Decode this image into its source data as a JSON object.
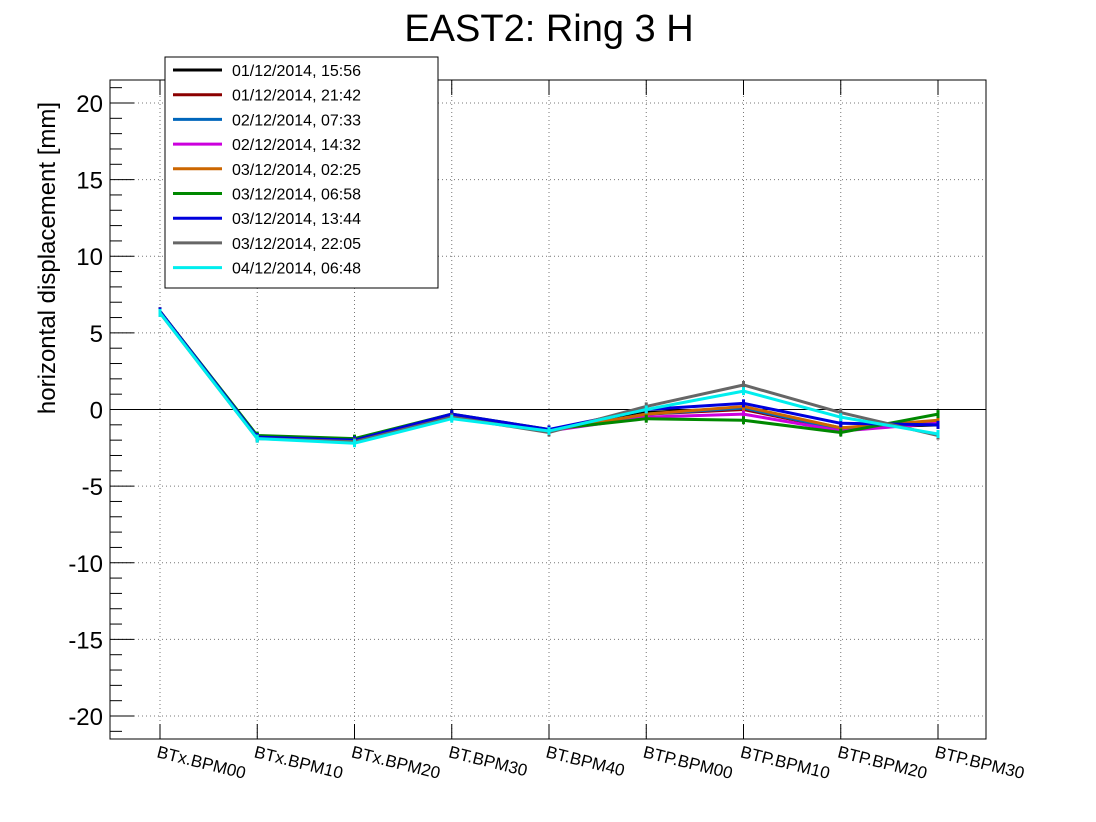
{
  "chart_data": {
    "type": "line",
    "title": "EAST2: Ring 3 H",
    "xlabel": "",
    "ylabel": "horizontal displacement [mm]",
    "ylim": [
      -21.5,
      21.5
    ],
    "yticks": [
      -20,
      -15,
      -10,
      -5,
      0,
      5,
      10,
      15,
      20
    ],
    "grid": true,
    "legend_position": "top-left",
    "categories": [
      "BTx.BPM00",
      "BTx.BPM10",
      "BTx.BPM20",
      "BT.BPM30",
      "BT.BPM40",
      "BTP.BPM00",
      "BTP.BPM10",
      "BTP.BPM20",
      "BTP.BPM30"
    ],
    "series": [
      {
        "name": "01/12/2014, 15:56",
        "color": "#000000",
        "values": [
          6.4,
          -1.8,
          -2.0,
          -0.4,
          -1.4,
          -0.2,
          0.1,
          -1.2,
          -1.0
        ]
      },
      {
        "name": "01/12/2014, 21:42",
        "color": "#8b0000",
        "values": [
          6.4,
          -1.8,
          -2.0,
          -0.4,
          -1.4,
          -0.3,
          0.0,
          -1.3,
          -0.8
        ]
      },
      {
        "name": "02/12/2014, 07:33",
        "color": "#0066bb",
        "values": [
          6.4,
          -1.8,
          -2.0,
          -0.4,
          -1.4,
          -0.3,
          0.1,
          -1.3,
          -0.9
        ]
      },
      {
        "name": "02/12/2014, 14:32",
        "color": "#cc00dd",
        "values": [
          6.4,
          -1.8,
          -2.0,
          -0.4,
          -1.4,
          -0.5,
          -0.3,
          -1.4,
          -0.9
        ]
      },
      {
        "name": "03/12/2014, 02:25",
        "color": "#cc6600",
        "values": [
          6.4,
          -1.8,
          -2.0,
          -0.4,
          -1.4,
          -0.3,
          0.2,
          -1.2,
          -0.7
        ]
      },
      {
        "name": "03/12/2014, 06:58",
        "color": "#008800",
        "values": [
          6.4,
          -1.7,
          -1.9,
          -0.3,
          -1.3,
          -0.6,
          -0.7,
          -1.5,
          -0.3
        ]
      },
      {
        "name": "03/12/2014, 13:44",
        "color": "#0000dd",
        "values": [
          6.4,
          -1.8,
          -2.0,
          -0.3,
          -1.3,
          0.0,
          0.4,
          -0.9,
          -1.0
        ]
      },
      {
        "name": "03/12/2014, 22:05",
        "color": "#666666",
        "values": [
          6.3,
          -1.9,
          -2.1,
          -0.5,
          -1.5,
          0.2,
          1.6,
          -0.2,
          -1.7
        ]
      },
      {
        "name": "04/12/2014, 06:48",
        "color": "#00eeee",
        "values": [
          6.3,
          -1.9,
          -2.2,
          -0.6,
          -1.4,
          0.0,
          1.2,
          -0.5,
          -1.6
        ]
      }
    ]
  }
}
